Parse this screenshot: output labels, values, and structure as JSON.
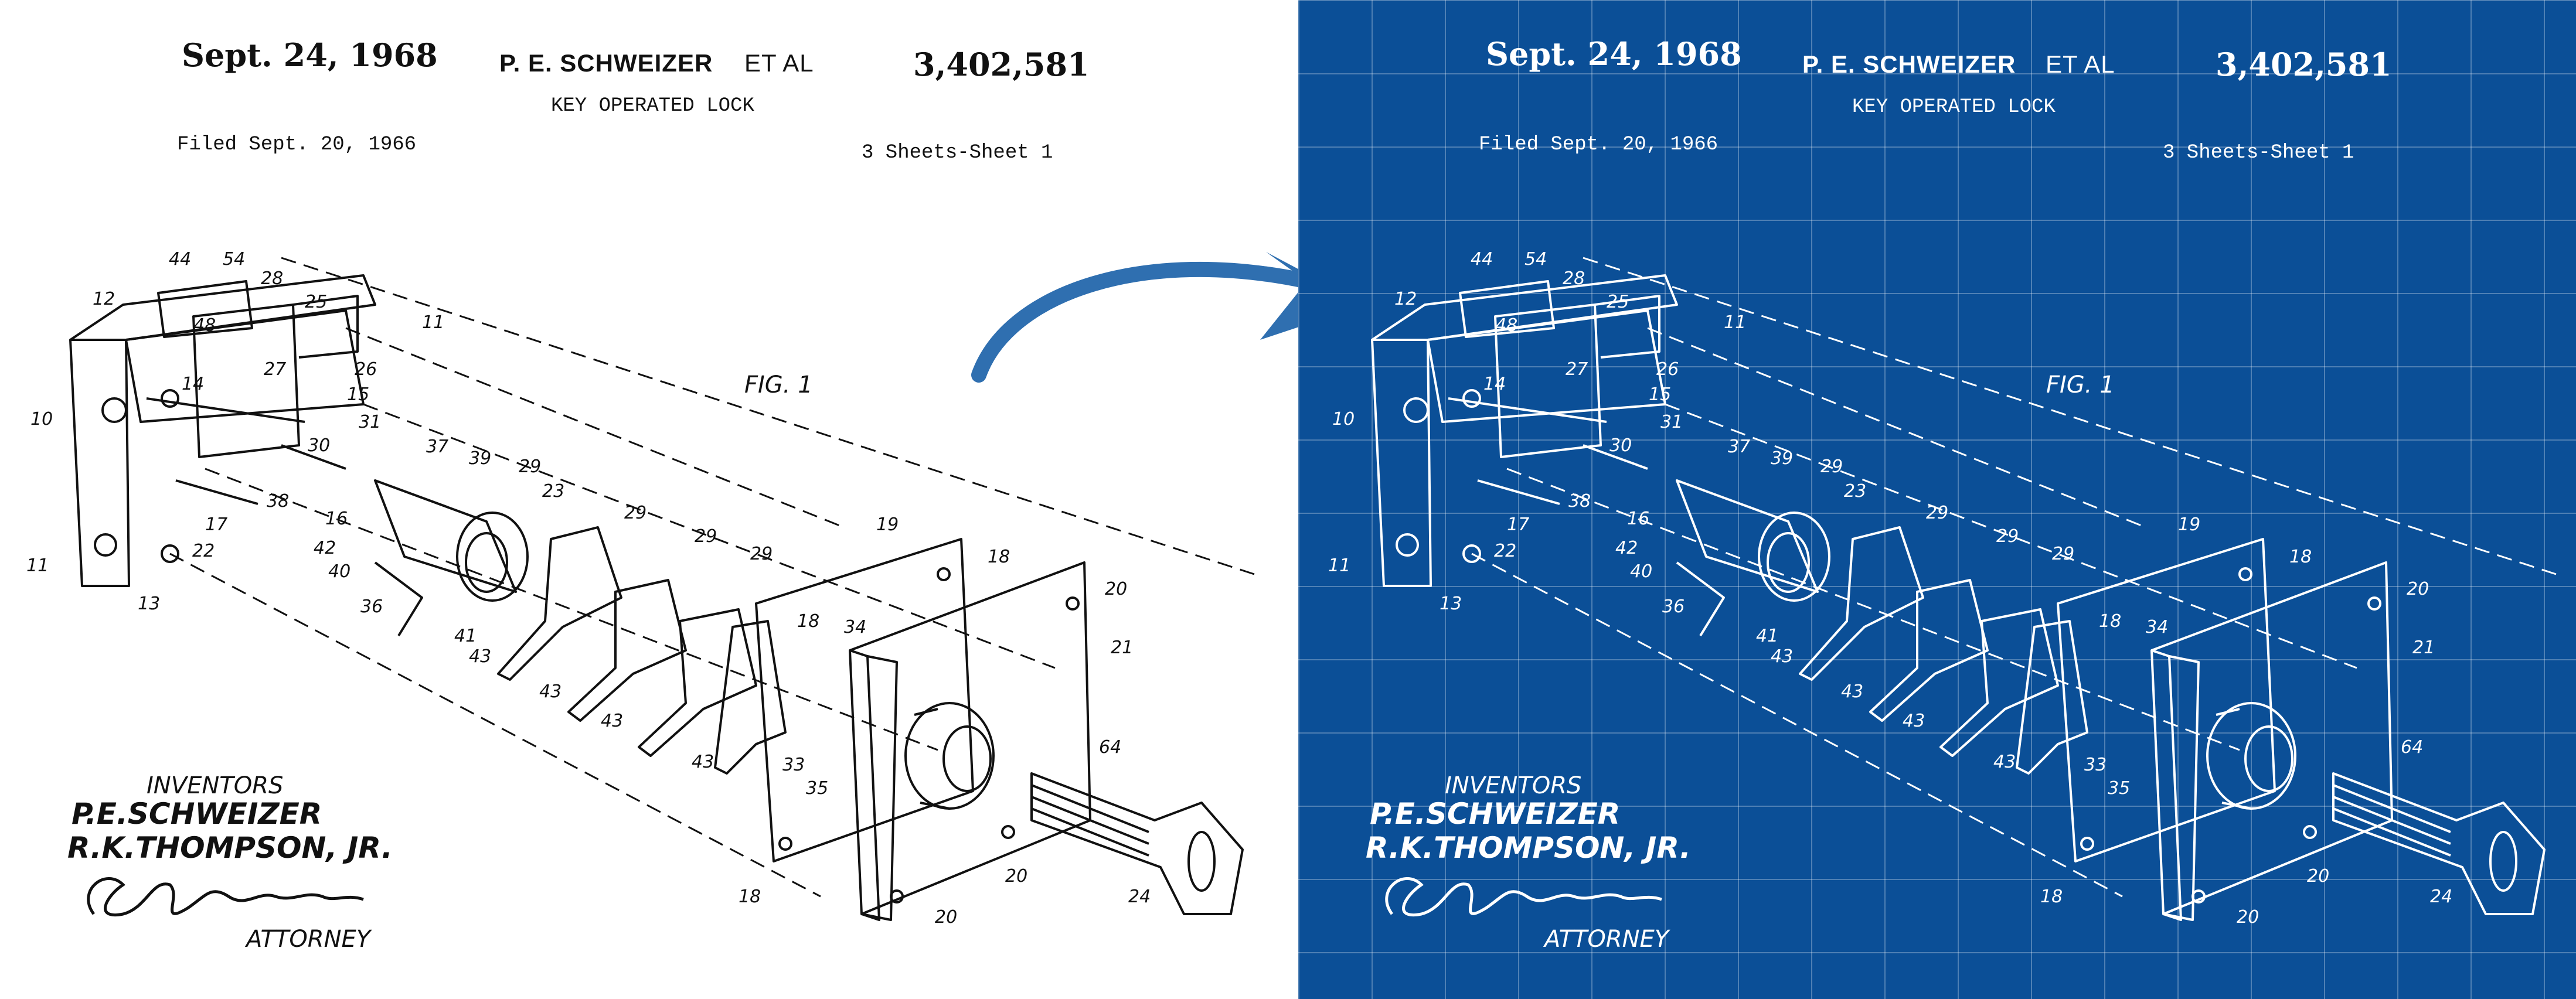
{
  "patent": {
    "date": "Sept. 24, 1968",
    "inventor_header": "P. E. SCHWEIZER",
    "et_al": "ET AL",
    "number": "3,402,581",
    "title": "KEY OPERATED LOCK",
    "filed": "Filed Sept. 20, 1966",
    "sheets": "3 Sheets-Sheet 1",
    "figure_label": "FIG. 1",
    "inventors_heading": "INVENTORS",
    "inventor_1": "P.E.SCHWEIZER",
    "inventor_2": "R.K.THOMPSON, JR.",
    "attorney_label": "ATTORNEY"
  },
  "part_labels": [
    "44",
    "54",
    "12",
    "28",
    "25",
    "48",
    "27",
    "26",
    "11",
    "14",
    "15",
    "10",
    "30",
    "31",
    "37",
    "39",
    "29",
    "23",
    "17",
    "38",
    "16",
    "42",
    "40",
    "22",
    "36",
    "41",
    "43",
    "13",
    "19",
    "18",
    "20",
    "34",
    "21",
    "33",
    "35",
    "64",
    "24"
  ],
  "colors": {
    "left_background": "#ffffff",
    "right_background": "#0b4f97",
    "arrow": "#2f6fb0"
  }
}
